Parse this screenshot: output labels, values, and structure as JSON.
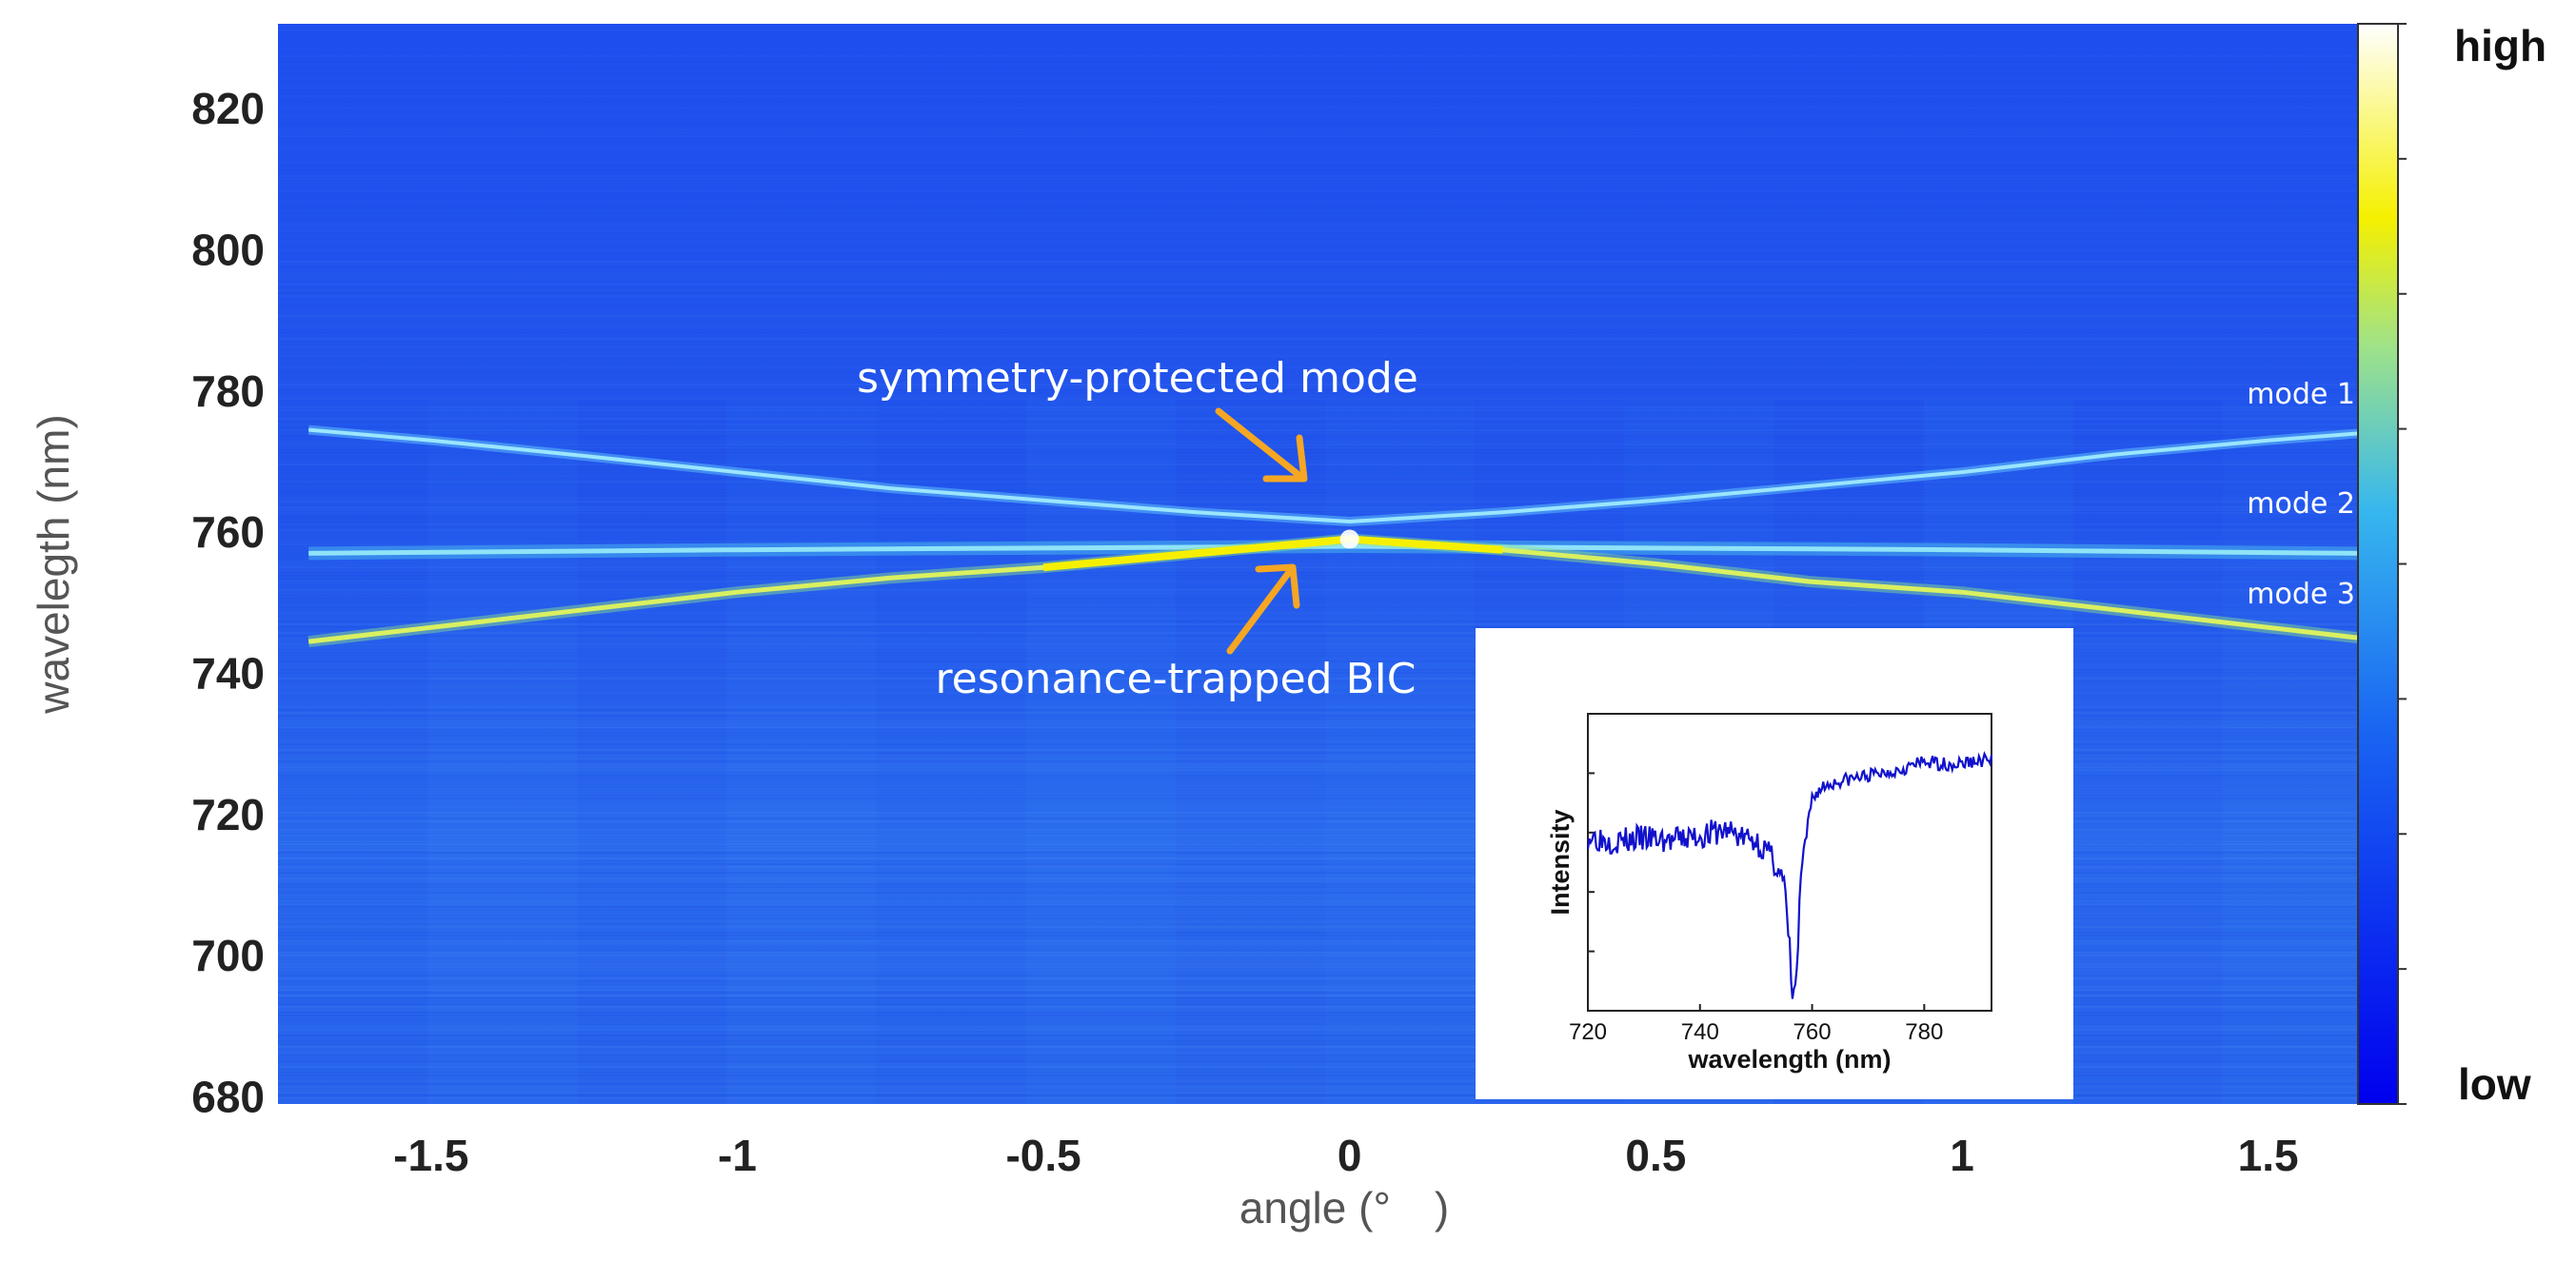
{
  "chart_data": [
    {
      "type": "heatmap",
      "title": "",
      "xlabel": "angle (° )",
      "ylabel": "wavelegth (nm)",
      "xlim": [
        -1.75,
        1.67
      ],
      "ylim": [
        679,
        832
      ],
      "x_ticks": [
        -1.5,
        -1,
        -0.5,
        0,
        0.5,
        1,
        1.5
      ],
      "x_tick_labels": [
        "-1.5",
        "-1",
        "-0.5",
        "0",
        "0.5",
        "1",
        "1.5"
      ],
      "y_ticks": [
        680,
        700,
        720,
        740,
        760,
        780,
        800,
        820
      ],
      "y_tick_labels": [
        "680",
        "700",
        "720",
        "740",
        "760",
        "780",
        "800",
        "820"
      ],
      "colorbar": {
        "high_label": "high",
        "low_label": "low",
        "colors": [
          "#0000ee",
          "#1e5ff0",
          "#2a9df0",
          "#5fd6d8",
          "#c8e84a",
          "#f8f000",
          "#ffffff"
        ]
      },
      "series": [
        {
          "name": "mode 1",
          "x": [
            -1.7,
            -1.5,
            -1.25,
            -1.0,
            -0.75,
            -0.5,
            -0.25,
            0.0,
            0.25,
            0.5,
            0.75,
            1.0,
            1.25,
            1.5,
            1.65
          ],
          "y": [
            774.5,
            773.0,
            770.8,
            768.5,
            766.2,
            764.5,
            762.8,
            761.5,
            762.8,
            764.5,
            766.5,
            768.5,
            771.0,
            773.0,
            774.0
          ]
        },
        {
          "name": "mode 2",
          "x": [
            -1.7,
            -1.0,
            0.0,
            1.0,
            1.65
          ],
          "y": [
            757.0,
            757.5,
            758.0,
            757.5,
            757.0
          ]
        },
        {
          "name": "mode 3",
          "x": [
            -1.7,
            -1.5,
            -1.25,
            -1.0,
            -0.75,
            -0.5,
            -0.25,
            0.0,
            0.25,
            0.5,
            0.75,
            1.0,
            1.25,
            1.5,
            1.65
          ],
          "y": [
            744.5,
            746.5,
            749.0,
            751.5,
            753.5,
            755.0,
            757.0,
            759.0,
            757.5,
            755.5,
            753.0,
            751.5,
            749.0,
            746.5,
            745.0
          ]
        }
      ],
      "mode_labels": [
        "mode 1",
        "mode 2",
        "mode 3"
      ],
      "annotations": {
        "top": {
          "text": "symmetry-protected mode",
          "points_to": {
            "x": -0.08,
            "y": 767.5
          }
        },
        "bottom": {
          "text": "resonance-trapped BIC",
          "points_to": {
            "x": -0.08,
            "y": 755.5
          }
        }
      }
    },
    {
      "type": "line",
      "title": "",
      "xlabel": "wavelength (nm)",
      "ylabel": "Intensity",
      "xlim": [
        720,
        792
      ],
      "x_ticks": [
        720,
        740,
        760,
        780
      ],
      "x_tick_labels": [
        "720",
        "740",
        "760",
        "780"
      ],
      "ylim": [
        0,
        1
      ],
      "series": [
        {
          "name": "spectrum",
          "x": [
            720,
            725,
            730,
            735,
            740,
            745,
            748,
            750,
            752,
            754,
            755,
            756,
            756.5,
            757,
            757.5,
            758,
            759,
            760,
            762,
            765,
            770,
            775,
            780,
            785,
            792
          ],
          "y": [
            0.62,
            0.6,
            0.61,
            0.6,
            0.62,
            0.64,
            0.61,
            0.6,
            0.56,
            0.5,
            0.44,
            0.2,
            0.03,
            0.05,
            0.22,
            0.48,
            0.62,
            0.76,
            0.8,
            0.82,
            0.84,
            0.86,
            0.89,
            0.88,
            0.9
          ]
        }
      ]
    }
  ]
}
